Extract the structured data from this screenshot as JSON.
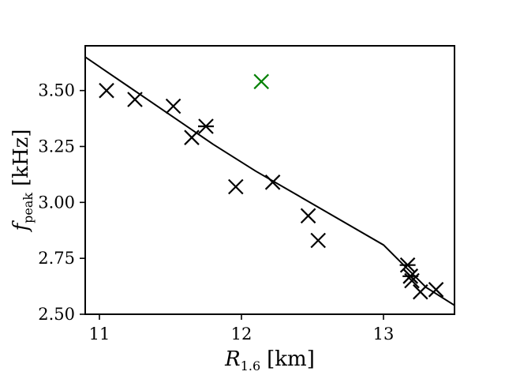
{
  "chart_data": {
    "type": "scatter",
    "title": "",
    "xlabel": {
      "main": "R",
      "sub": "1.6",
      "unit": "[km]"
    },
    "ylabel": {
      "main": "f",
      "sub": "peak",
      "unit": "[kHz]"
    },
    "xlim": [
      10.9,
      13.5
    ],
    "ylim": [
      2.5,
      3.7
    ],
    "xticks": [
      {
        "value": 11,
        "label": "11"
      },
      {
        "value": 12,
        "label": "12"
      },
      {
        "value": 13,
        "label": "13"
      }
    ],
    "yticks": [
      {
        "value": 2.5,
        "label": "2.50"
      },
      {
        "value": 2.75,
        "label": "2.75"
      },
      {
        "value": 3.0,
        "label": "3.00"
      },
      {
        "value": 3.25,
        "label": "3.25"
      },
      {
        "value": 3.5,
        "label": "3.50"
      }
    ],
    "grid": false,
    "series": [
      {
        "marker": "x",
        "color": "#000000",
        "points": [
          [
            11.05,
            3.5
          ],
          [
            11.25,
            3.46
          ],
          [
            11.52,
            3.43
          ],
          [
            11.65,
            3.29
          ],
          [
            11.96,
            3.07
          ],
          [
            12.22,
            3.09
          ],
          [
            12.47,
            2.94
          ],
          [
            12.54,
            2.83
          ],
          [
            13.19,
            2.67
          ],
          [
            13.2,
            2.65
          ],
          [
            13.26,
            2.6
          ],
          [
            13.37,
            2.61
          ]
        ]
      },
      {
        "marker": "asterisk",
        "color": "#000000",
        "points": [
          [
            11.75,
            3.34
          ],
          [
            13.17,
            2.72
          ],
          [
            13.19,
            2.67
          ]
        ]
      },
      {
        "marker": "x",
        "color": "#008000",
        "points": [
          [
            12.14,
            3.54
          ]
        ]
      }
    ],
    "fit_curve": {
      "color": "#000000",
      "points": [
        [
          10.9,
          3.65
        ],
        [
          11.2,
          3.52
        ],
        [
          11.5,
          3.39
        ],
        [
          11.8,
          3.26
        ],
        [
          12.1,
          3.14
        ],
        [
          12.4,
          3.03
        ],
        [
          12.7,
          2.92
        ],
        [
          13.0,
          2.81
        ],
        [
          13.3,
          2.62
        ],
        [
          13.5,
          2.54
        ]
      ]
    }
  }
}
